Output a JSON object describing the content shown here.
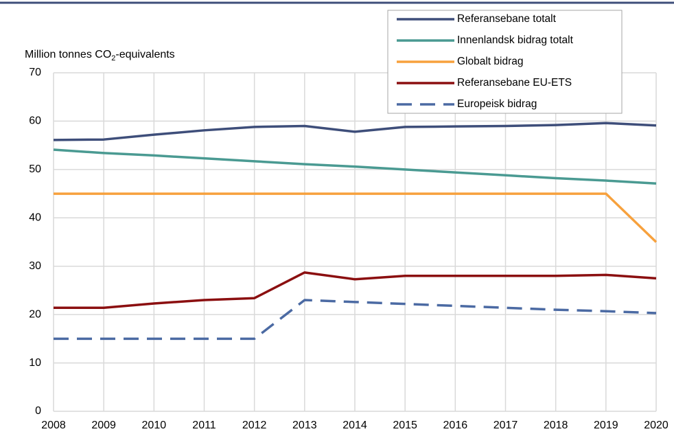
{
  "chart_data": {
    "type": "line",
    "ylabel": {
      "text": "Million tonnes CO",
      "sub": "2",
      "rest": "-equivalents"
    },
    "x": [
      2008,
      2009,
      2010,
      2011,
      2012,
      2013,
      2014,
      2015,
      2016,
      2017,
      2018,
      2019,
      2020
    ],
    "xlim": [
      2008,
      2020
    ],
    "xticks": [
      2008,
      2009,
      2010,
      2011,
      2012,
      2013,
      2014,
      2015,
      2016,
      2017,
      2018,
      2019,
      2020
    ],
    "ylim": [
      0,
      70
    ],
    "yticks": [
      0,
      10,
      20,
      30,
      40,
      50,
      60,
      70
    ],
    "grid": true,
    "legend": "top-right",
    "series": [
      {
        "name": "Referansebane totalt",
        "color": "#3e4e7a",
        "values": [
          56.1,
          56.2,
          57.2,
          58.1,
          58.8,
          59.0,
          57.8,
          58.8,
          58.9,
          59.0,
          59.2,
          59.6,
          59.1
        ]
      },
      {
        "name": "Innenlandsk bidrag totalt",
        "color": "#4a9a92",
        "values": [
          54.1,
          53.4,
          52.9,
          52.3,
          51.7,
          51.1,
          50.6,
          50.0,
          49.4,
          48.8,
          48.2,
          47.7,
          47.1
        ]
      },
      {
        "name": "Globalt bidrag",
        "color": "#f7a13d",
        "values": [
          45,
          45,
          45,
          45,
          45,
          45,
          45,
          45,
          45,
          45,
          45,
          45,
          35
        ]
      },
      {
        "name": "Referansebane EU-ETS",
        "color": "#8b0f10",
        "values": [
          21.4,
          21.4,
          22.3,
          23.0,
          23.4,
          28.7,
          27.3,
          28.0,
          28.0,
          28.0,
          28.0,
          28.2,
          27.5
        ]
      },
      {
        "name": "Europeisk bidrag",
        "color": "#4b6aa3",
        "dash": true,
        "values": [
          15,
          15,
          15,
          15,
          15,
          23.0,
          22.6,
          22.2,
          21.8,
          21.4,
          21.0,
          20.7,
          20.3
        ]
      }
    ]
  }
}
